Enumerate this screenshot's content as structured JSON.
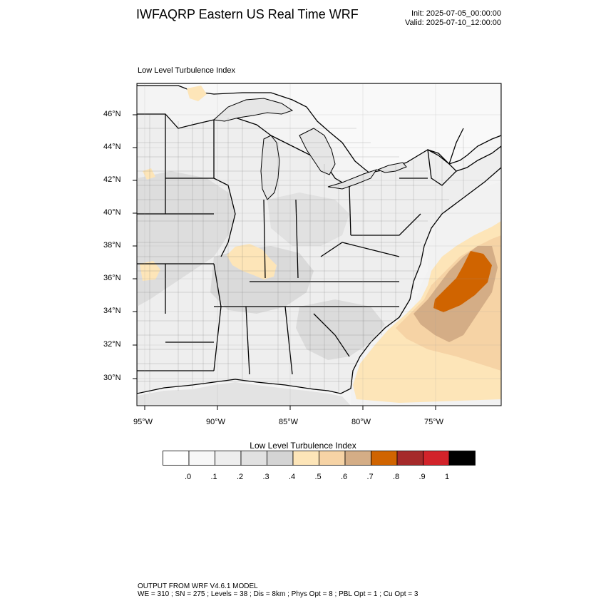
{
  "header": {
    "title": "IWFAQRP Eastern US Real Time WRF",
    "init": "Init: 2025-07-05_00:00:00",
    "valid": "Valid: 2025-07-10_12:00:00"
  },
  "panel": {
    "title": "Low Level Turbulence Index"
  },
  "map": {
    "lat_ticks": [
      "46°N",
      "44°N",
      "42°N",
      "40°N",
      "38°N",
      "36°N",
      "34°N",
      "32°N",
      "30°N"
    ],
    "lon_ticks": [
      "95°W",
      "90°W",
      "85°W",
      "80°W",
      "75°W"
    ],
    "colors": {
      "land_base": "#f7f7f7",
      "land_grey": "#dcdcdc",
      "water": "#e9e9e9",
      "ocean_light": "#f2f2f2",
      "borders": "#000000"
    }
  },
  "colorbar": {
    "title": "Low Level Turbulence Index",
    "labels": [
      ".0",
      ".1",
      ".2",
      ".3",
      ".4",
      ".5",
      ".6",
      ".7",
      ".8",
      ".9",
      "1"
    ],
    "colors": [
      "#ffffff",
      "#f7f7f7",
      "#eeeeee",
      "#e1e1e1",
      "#d4d4d4",
      "#fde5b8",
      "#f6d3a5",
      "#d4ad86",
      "#d06400",
      "#a52a2a",
      "#d2232a",
      "#000000"
    ]
  },
  "footer": {
    "line1": "OUTPUT FROM WRF V4.6.1 MODEL",
    "line2": "WE = 310 ; SN = 275 ; Levels = 38 ; Dis = 8km ; Phys Opt = 8 ; PBL Opt = 1 ; Cu Opt = 3"
  }
}
